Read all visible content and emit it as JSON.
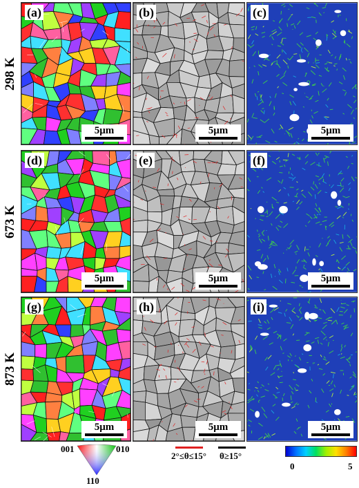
{
  "rows": [
    {
      "temperature": "298 K",
      "panels": [
        {
          "label": "(a)",
          "scale": "5μm"
        },
        {
          "label": "(b)",
          "scale": "5μm"
        },
        {
          "label": "(c)",
          "scale": "5μm"
        }
      ]
    },
    {
      "temperature": "673 K",
      "panels": [
        {
          "label": "(d)",
          "scale": "5μm"
        },
        {
          "label": "(e)",
          "scale": "5μm"
        },
        {
          "label": "(f)",
          "scale": "5μm"
        }
      ]
    },
    {
      "temperature": "873 K",
      "panels": [
        {
          "label": "(g)",
          "scale": "5μm"
        },
        {
          "label": "(h)",
          "scale": "5μm"
        },
        {
          "label": "(i)",
          "scale": "5μm"
        }
      ]
    }
  ],
  "legend": {
    "ipf": {
      "left": "001",
      "right": "010",
      "bottom": "110"
    },
    "boundaries": {
      "low_angle": "2°≤θ≤15°",
      "low_angle_color": "#e02020",
      "high_angle": "θ≥15°",
      "high_angle_color": "#000000"
    },
    "kam": {
      "min": "0",
      "max": "5"
    }
  },
  "colors": {
    "kam_background": "#1f3fb8"
  }
}
